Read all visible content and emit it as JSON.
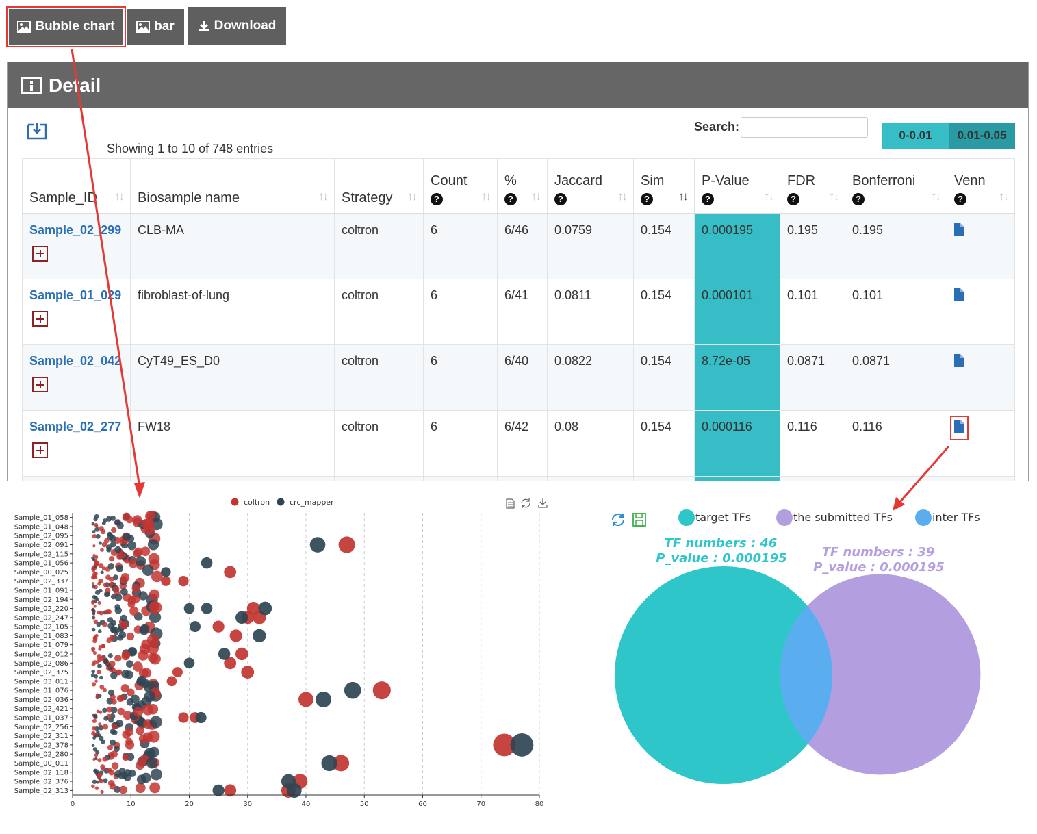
{
  "toolbar": {
    "bubble_label": "Bubble chart",
    "bar_label": "bar",
    "download_label": "Download"
  },
  "panel": {
    "title": "Detail",
    "info": "Showing 1 to 10 of 748 entries",
    "search_label": "Search:",
    "search_value": "",
    "legend": [
      {
        "label": "0-0.01",
        "color": "#36bdc6"
      },
      {
        "label": "0.01-0.05",
        "color": "#2a9aa3"
      }
    ]
  },
  "table": {
    "headers": [
      "Sample_ID",
      "Biosample name",
      "Strategy",
      "Count",
      "%",
      "Jaccard",
      "Sim",
      "P-Value",
      "FDR",
      "Bonferroni",
      "Venn"
    ],
    "help_marker": "?",
    "rows": [
      {
        "sample_id": "Sample_02_299",
        "biosample": "CLB-MA",
        "strategy": "coltron",
        "count": "6",
        "percent": "6/46",
        "jaccard": "0.0759",
        "sim": "0.154",
        "pvalue": "0.000195",
        "fdr": "0.195",
        "bonferroni": "0.195"
      },
      {
        "sample_id": "Sample_01_029",
        "biosample": "fibroblast-of-lung",
        "strategy": "coltron",
        "count": "6",
        "percent": "6/41",
        "jaccard": "0.0811",
        "sim": "0.154",
        "pvalue": "0.000101",
        "fdr": "0.101",
        "bonferroni": "0.101"
      },
      {
        "sample_id": "Sample_02_042",
        "biosample": "CyT49_ES_D0",
        "strategy": "coltron",
        "count": "6",
        "percent": "6/40",
        "jaccard": "0.0822",
        "sim": "0.154",
        "pvalue": "8.72e-05",
        "fdr": "0.0871",
        "bonferroni": "0.0871"
      },
      {
        "sample_id": "Sample_02_277",
        "biosample": "FW18",
        "strategy": "coltron",
        "count": "6",
        "percent": "6/42",
        "jaccard": "0.08",
        "sim": "0.154",
        "pvalue": "0.000116",
        "fdr": "0.116",
        "bonferroni": "0.116"
      }
    ]
  },
  "chart_data": [
    {
      "type": "scatter",
      "legend": [
        "coltron",
        "crc_mapper"
      ],
      "legend_position": "top",
      "colors": {
        "coltron": "#c23531",
        "crc_mapper": "#2f4554"
      },
      "toolbox": [
        "data-view-icon",
        "restore-icon",
        "save-image-icon"
      ],
      "xlim": [
        0,
        80
      ],
      "xticks": [
        "0",
        "10",
        "20",
        "30",
        "40",
        "50",
        "60",
        "70",
        "80"
      ],
      "grid": true,
      "ytick_labels": [
        "Sample_01_058",
        "Sample_01_048",
        "Sample_02_095",
        "Sample_02_091",
        "Sample_02_115",
        "Sample_01_056",
        "Sample_00_025",
        "Sample_02_337",
        "Sample_01_091",
        "Sample_02_194",
        "Sample_02_220",
        "Sample_02_247",
        "Sample_02_105",
        "Sample_01_083",
        "Sample_01_079",
        "Sample_02_012",
        "Sample_02_086",
        "Sample_02_375",
        "Sample_03_011",
        "Sample_01_076",
        "Sample_02_036",
        "Sample_02_421",
        "Sample_01_037",
        "Sample_02_256",
        "Sample_02_311",
        "Sample_02_378",
        "Sample_02_280",
        "Sample_00_011",
        "Sample_02_118",
        "Sample_02_376",
        "Sample_02_313"
      ],
      "series": [
        {
          "name": "coltron",
          "points": [
            [
              47,
              3
            ],
            [
              27,
              6
            ],
            [
              16,
              7
            ],
            [
              19,
              7
            ],
            [
              31,
              10
            ],
            [
              30,
              11
            ],
            [
              32,
              11
            ],
            [
              25,
              12
            ],
            [
              28,
              13
            ],
            [
              29,
              15
            ],
            [
              27,
              16
            ],
            [
              30,
              17
            ],
            [
              18,
              17
            ],
            [
              17,
              18
            ],
            [
              53,
              19
            ],
            [
              40,
              20
            ],
            [
              21,
              22
            ],
            [
              19,
              22
            ],
            [
              74,
              25
            ],
            [
              46,
              27
            ],
            [
              39,
              29
            ],
            [
              37,
              30
            ],
            [
              27,
              30
            ]
          ]
        },
        {
          "name": "crc_mapper",
          "points": [
            [
              42,
              3
            ],
            [
              23,
              5
            ],
            [
              16,
              6
            ],
            [
              33,
              10
            ],
            [
              20,
              10
            ],
            [
              23,
              10
            ],
            [
              29,
              11
            ],
            [
              21,
              12
            ],
            [
              32,
              13
            ],
            [
              26,
              15
            ],
            [
              20,
              16
            ],
            [
              48,
              19
            ],
            [
              43,
              20
            ],
            [
              22,
              22
            ],
            [
              77,
              25
            ],
            [
              44,
              27
            ],
            [
              37,
              29
            ],
            [
              38,
              30
            ],
            [
              25,
              30
            ]
          ]
        }
      ]
    },
    {
      "type": "venn",
      "toolbox": [
        "refresh-icon",
        "save-icon"
      ],
      "legend": [
        {
          "label": "target TFs",
          "color": "#2ec6c9"
        },
        {
          "label": "the submitted TFs",
          "color": "#b39ee0"
        },
        {
          "label": "inter TFs",
          "color": "#5aaef0"
        }
      ],
      "sets": [
        {
          "name": "target TFs",
          "size": 46,
          "p_value": "0.000195",
          "text1": "TF numbers : 46",
          "text2": "P_value : 0.000195"
        },
        {
          "name": "the submitted TFs",
          "size": 39,
          "p_value": "0.000195",
          "text1": "TF numbers : 39",
          "text2": "P_value : 0.000195"
        }
      ]
    }
  ]
}
